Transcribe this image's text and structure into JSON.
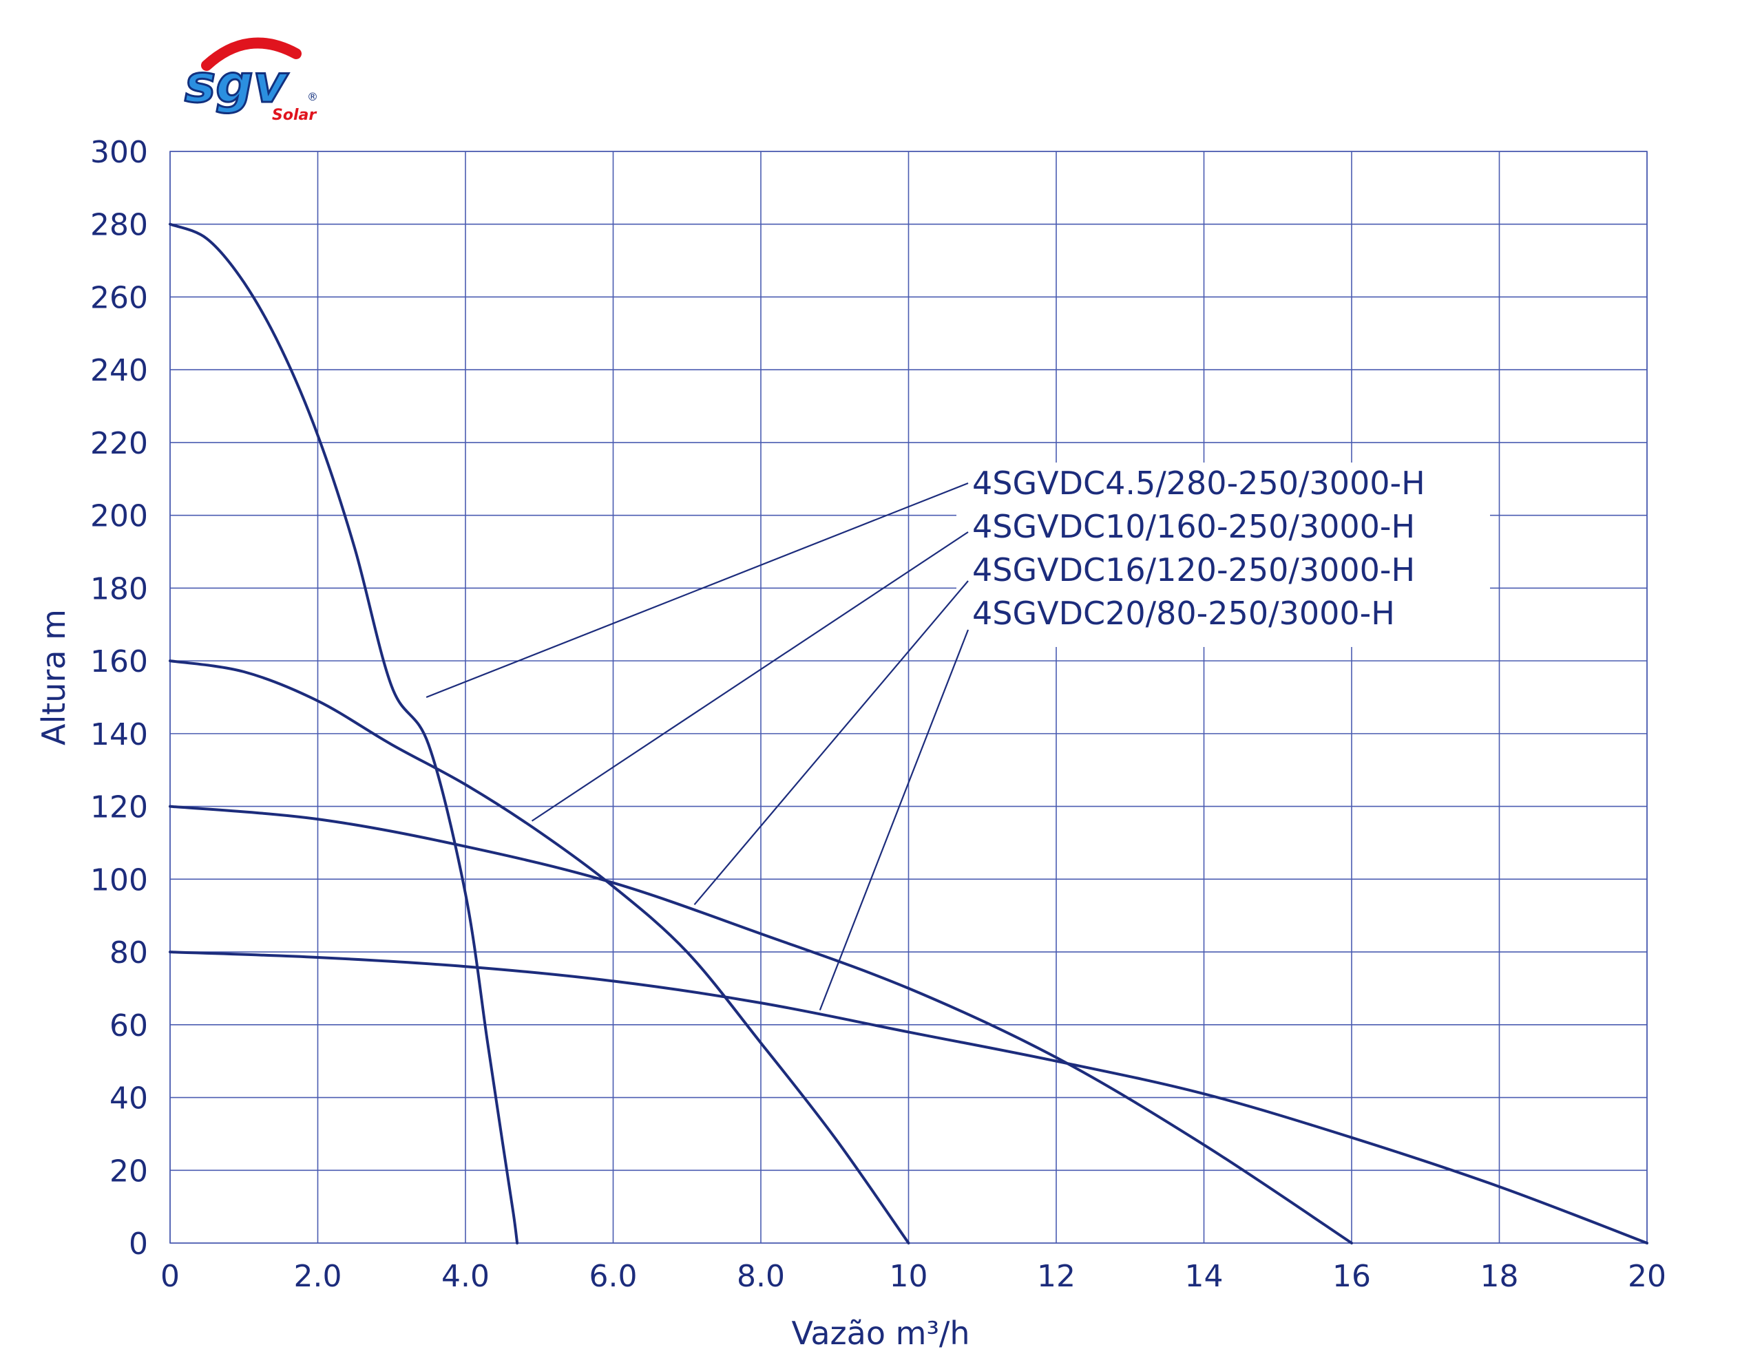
{
  "logo": {
    "brand": "sgv",
    "sub": "Solar",
    "mark": "®"
  },
  "colors": {
    "line": "#1c2c7c",
    "grid": "#4a5bb0",
    "text": "#1c2c7c",
    "logo_blue": "#2b8fe0",
    "logo_red": "#e0141e"
  },
  "chart_data": {
    "type": "line",
    "xlabel": "Vazão m³/h",
    "ylabel": "Altura m",
    "xlim": [
      0,
      20
    ],
    "ylim": [
      0,
      300
    ],
    "grid": true,
    "x_ticks": [
      {
        "value": 0,
        "label": "0"
      },
      {
        "value": 2,
        "label": "2.0"
      },
      {
        "value": 4,
        "label": "4.0"
      },
      {
        "value": 6,
        "label": "6.0"
      },
      {
        "value": 8,
        "label": "8.0"
      },
      {
        "value": 10,
        "label": "10"
      },
      {
        "value": 12,
        "label": "12"
      },
      {
        "value": 14,
        "label": "14"
      },
      {
        "value": 16,
        "label": "16"
      },
      {
        "value": 18,
        "label": "18"
      },
      {
        "value": 20,
        "label": "20"
      }
    ],
    "y_ticks": [
      {
        "value": 0,
        "label": "0"
      },
      {
        "value": 20,
        "label": "20"
      },
      {
        "value": 40,
        "label": "40"
      },
      {
        "value": 60,
        "label": "60"
      },
      {
        "value": 80,
        "label": "80"
      },
      {
        "value": 100,
        "label": "100"
      },
      {
        "value": 120,
        "label": "120"
      },
      {
        "value": 140,
        "label": "140"
      },
      {
        "value": 160,
        "label": "160"
      },
      {
        "value": 180,
        "label": "180"
      },
      {
        "value": 200,
        "label": "200"
      },
      {
        "value": 220,
        "label": "220"
      },
      {
        "value": 240,
        "label": "240"
      },
      {
        "value": 260,
        "label": "260"
      },
      {
        "value": 280,
        "label": "280"
      },
      {
        "value": 300,
        "label": "300"
      }
    ],
    "legend_placement": "upper-right, with leader lines to curves",
    "series": [
      {
        "name": "4SGVDC4.5/280-250/3000-H",
        "label_point": [
          3.47,
          150
        ],
        "points": [
          [
            0,
            280
          ],
          [
            0.5,
            276
          ],
          [
            1,
            264
          ],
          [
            1.5,
            246
          ],
          [
            2,
            222
          ],
          [
            2.5,
            191
          ],
          [
            3,
            153
          ],
          [
            3.5,
            137
          ],
          [
            4,
            96
          ],
          [
            4.3,
            55
          ],
          [
            4.5,
            28
          ],
          [
            4.65,
            8
          ],
          [
            4.7,
            0
          ]
        ]
      },
      {
        "name": "4SGVDC10/160-250/3000-H",
        "label_point": [
          4.9,
          116
        ],
        "points": [
          [
            0,
            160
          ],
          [
            1,
            157
          ],
          [
            2,
            149
          ],
          [
            3,
            137
          ],
          [
            4,
            126
          ],
          [
            5,
            113
          ],
          [
            6,
            98
          ],
          [
            7,
            80
          ],
          [
            8,
            55
          ],
          [
            9,
            29
          ],
          [
            10,
            0
          ]
        ]
      },
      {
        "name": "4SGVDC16/120-250/3000-H",
        "label_point": [
          7.1,
          93
        ],
        "points": [
          [
            0,
            120
          ],
          [
            2,
            116.5
          ],
          [
            4,
            109
          ],
          [
            6,
            99
          ],
          [
            8,
            85
          ],
          [
            10,
            70
          ],
          [
            12,
            51
          ],
          [
            14,
            27
          ],
          [
            16,
            0
          ]
        ]
      },
      {
        "name": "4SGVDC20/80-250/3000-H",
        "label_point": [
          8.8,
          64
        ],
        "points": [
          [
            0,
            80
          ],
          [
            2,
            78.5
          ],
          [
            4,
            76
          ],
          [
            6,
            72
          ],
          [
            8,
            66
          ],
          [
            10,
            58
          ],
          [
            12,
            50
          ],
          [
            14,
            41
          ],
          [
            16,
            29
          ],
          [
            18,
            15.5
          ],
          [
            20,
            0
          ]
        ]
      }
    ]
  }
}
